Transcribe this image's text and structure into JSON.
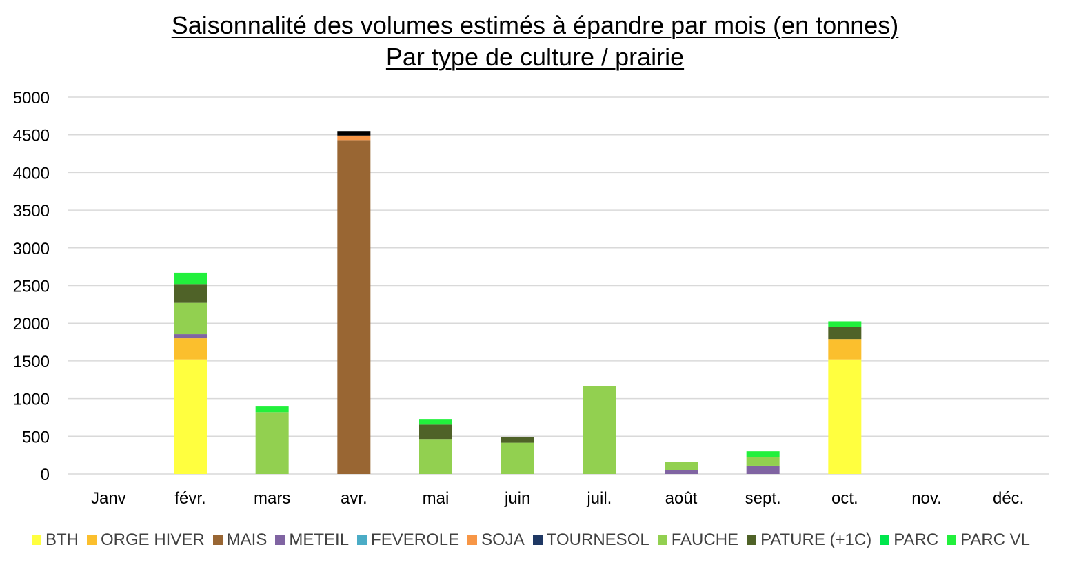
{
  "chart_data": {
    "type": "bar",
    "stacked": true,
    "title_line1": "Saisonnalité des volumes estimés à épandre par mois (en tonnes)",
    "title_line2": "Par type de culture / prairie",
    "categories": [
      "Janv",
      "févr.",
      "mars",
      "avr.",
      "mai",
      "juin",
      "juil.",
      "août",
      "sept.",
      "oct.",
      "nov.",
      "déc."
    ],
    "ylim": [
      0,
      5000
    ],
    "yticks": [
      0,
      500,
      1000,
      1500,
      2000,
      2500,
      3000,
      3500,
      4000,
      4500,
      5000
    ],
    "grid": true,
    "legend_position": "bottom",
    "series": [
      {
        "name": "BTH",
        "color": "#FFFF3F",
        "values": [
          0,
          1520,
          0,
          0,
          0,
          0,
          0,
          0,
          0,
          1520,
          0,
          0
        ]
      },
      {
        "name": "ORGE HIVER",
        "color": "#FBBF2D",
        "values": [
          0,
          280,
          0,
          0,
          0,
          0,
          0,
          0,
          0,
          270,
          0,
          0
        ]
      },
      {
        "name": "MAIS",
        "color": "#996633",
        "values": [
          0,
          0,
          0,
          4430,
          0,
          0,
          0,
          0,
          0,
          0,
          0,
          0
        ]
      },
      {
        "name": "METEIL",
        "color": "#8064A2",
        "values": [
          0,
          55,
          0,
          0,
          0,
          0,
          0,
          50,
          110,
          0,
          0,
          0
        ]
      },
      {
        "name": "FEVEROLE",
        "color": "#4BACC6",
        "values": [
          0,
          0,
          0,
          0,
          0,
          0,
          0,
          0,
          0,
          0,
          0,
          0
        ]
      },
      {
        "name": "SOJA",
        "color": "#F79646",
        "values": [
          0,
          0,
          0,
          60,
          0,
          0,
          0,
          0,
          0,
          0,
          0,
          0
        ]
      },
      {
        "name": "TOURNESOL",
        "color": "#1F3864",
        "values": [
          0,
          0,
          0,
          0,
          0,
          0,
          0,
          0,
          0,
          0,
          0,
          0
        ]
      },
      {
        "name": "FAUCHE",
        "color": "#92D050",
        "values": [
          0,
          415,
          820,
          0,
          455,
          415,
          1165,
          110,
          115,
          0,
          0,
          0
        ]
      },
      {
        "name": "PATURE (+1C)",
        "color": "#4F6228",
        "values": [
          0,
          250,
          0,
          0,
          200,
          70,
          0,
          0,
          0,
          160,
          0,
          0
        ]
      },
      {
        "name": "PARC",
        "color": "#00E64D",
        "values": [
          0,
          0,
          0,
          0,
          0,
          0,
          0,
          0,
          0,
          0,
          0,
          0
        ]
      },
      {
        "name": "PARC VL",
        "color": "#22F03C",
        "values": [
          0,
          150,
          75,
          0,
          75,
          0,
          0,
          0,
          75,
          75,
          0,
          0
        ]
      },
      {
        "name": "",
        "color": "#000000",
        "values": [
          0,
          0,
          0,
          60,
          0,
          0,
          0,
          0,
          0,
          0,
          0,
          0
        ]
      }
    ]
  }
}
